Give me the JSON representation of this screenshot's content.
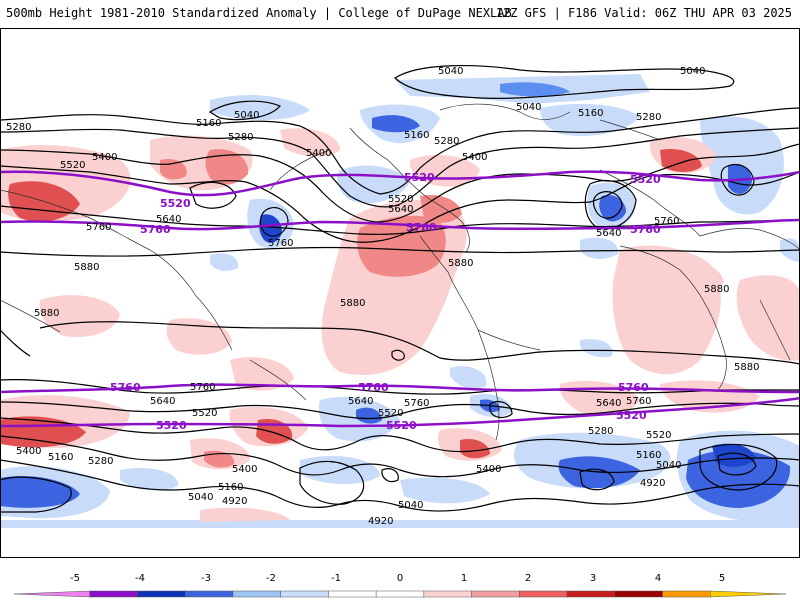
{
  "header": {
    "left": "500mb Height 1981-2010 Standardized Anomaly | College of DuPage NEXLAB",
    "right": "12Z GFS | F186 Valid: 06Z THU APR 03 2025"
  },
  "contour_labels": {
    "black": [
      "5040",
      "5040",
      "5040",
      "5040",
      "5160",
      "5160",
      "5160",
      "5280",
      "5280",
      "5280",
      "5280",
      "5400",
      "5400",
      "5400",
      "5520",
      "5520",
      "5640",
      "5640",
      "5640",
      "5760",
      "5760",
      "5760",
      "5880",
      "5880",
      "5880",
      "5880",
      "5880",
      "5880",
      "5760",
      "5640",
      "5520",
      "5400",
      "5160",
      "5280",
      "5400",
      "5160",
      "5040",
      "4920",
      "5640",
      "5520",
      "5760",
      "5400",
      "5040",
      "4920",
      "5640",
      "5760",
      "5520",
      "5280",
      "5160",
      "5040",
      "4920"
    ],
    "purple": [
      "5520",
      "5520",
      "5520",
      "5760",
      "5760",
      "5760",
      "5760",
      "5760",
      "5760",
      "5520",
      "5520",
      "5520"
    ]
  },
  "colorbar": {
    "labels": [
      "-5",
      "-4",
      "-3",
      "-2",
      "-1",
      "0",
      "1",
      "2",
      "3",
      "4",
      "5"
    ],
    "colors": [
      "#ee82ee",
      "#8b10c8",
      "#1032b8",
      "#3c64e0",
      "#9ec3f5",
      "#c9ddfa",
      "#ffffff",
      "#ffffff",
      "#fbd3d3",
      "#f5a0a0",
      "#ec6060",
      "#c81e1e",
      "#9b0000",
      "#ff9a00",
      "#ffd000"
    ]
  },
  "colors": {
    "purple": "#8b10c8",
    "blue_light": "#c8dcfa",
    "blue_mid": "#5c8ff0",
    "blue_dark": "#1e46cc",
    "red_light": "#fbd0d0",
    "red_mid": "#f08888",
    "red_dark": "#e05050"
  }
}
